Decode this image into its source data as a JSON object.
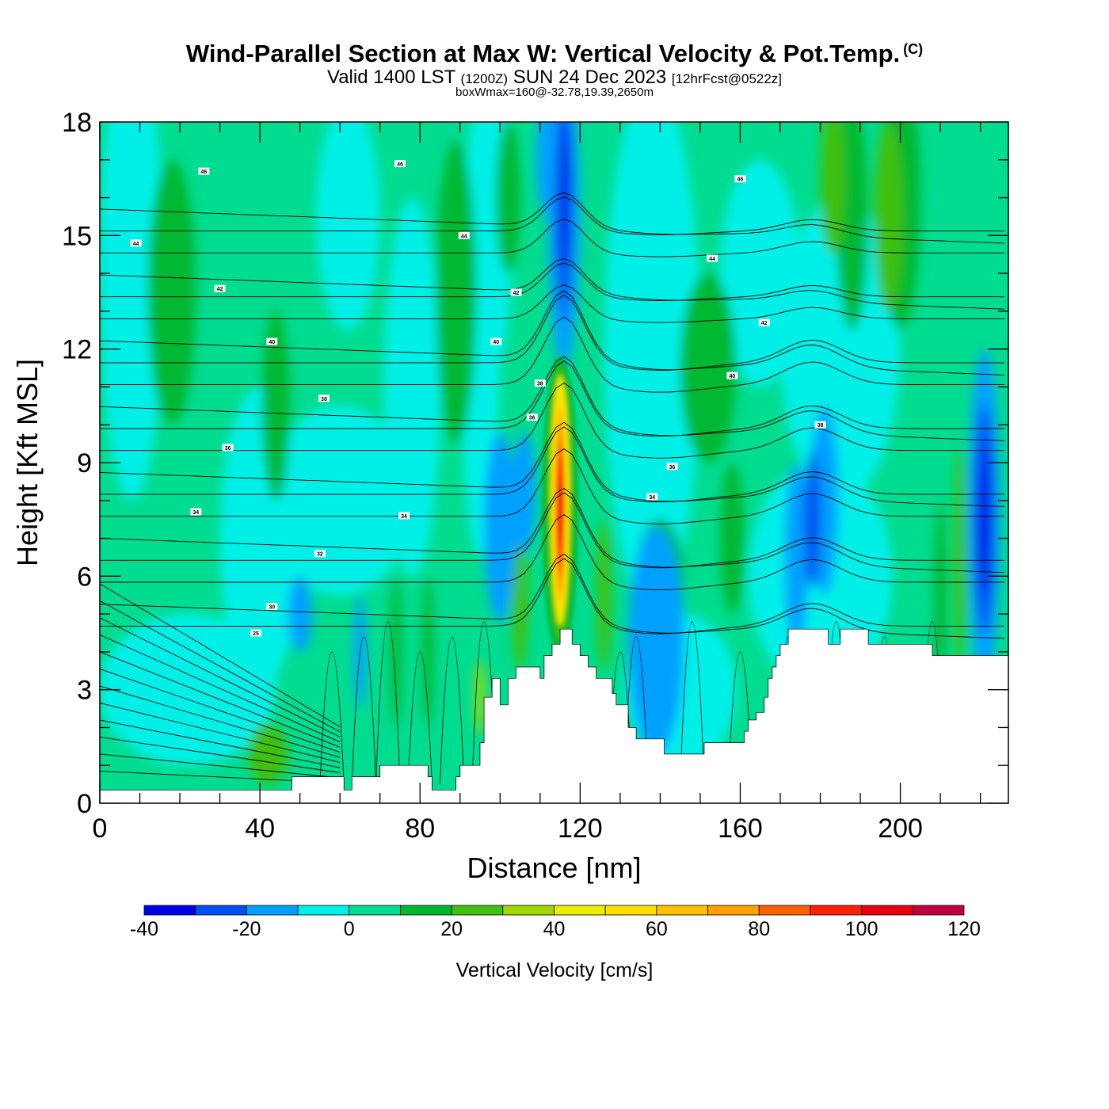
{
  "header": {
    "title": "Wind-Parallel Section at Max W: Vertical Velocity & Pot.Temp.",
    "title_mark": "(C)",
    "valid_prefix": "Valid 1400 LST",
    "valid_utc": "(1200Z)",
    "valid_date": "SUN 24 Dec 2023",
    "forecast": "[12hrFcst@0522z]",
    "box_info": "boxWmax=160@-32.78,19.39,2650m"
  },
  "chart_data": {
    "type": "heatmap",
    "xlabel": "Distance [nm]",
    "ylabel": "Height [Kft MSL]",
    "xlim": [
      0,
      227
    ],
    "ylim": [
      0,
      18
    ],
    "x_ticks": [
      0,
      40,
      80,
      120,
      160,
      200
    ],
    "y_ticks": [
      0,
      3,
      6,
      9,
      12,
      15,
      18
    ],
    "colorbar": {
      "title": "Vertical Velocity [cm/s]",
      "ticks": [
        -40,
        -20,
        0,
        20,
        40,
        60,
        80,
        100,
        120
      ],
      "levels": [
        -40,
        -30,
        -20,
        -10,
        0,
        10,
        20,
        30,
        40,
        50,
        60,
        70,
        80,
        90,
        100,
        110,
        120
      ],
      "colors": [
        "#0000e6",
        "#0050f0",
        "#00a0ff",
        "#00f0e8",
        "#00dc90",
        "#00b830",
        "#40c010",
        "#a0d800",
        "#e8f000",
        "#ffe000",
        "#ffc000",
        "#ffa000",
        "#ff6000",
        "#ff2000",
        "#e80010",
        "#c00040"
      ]
    },
    "terrain": {
      "x": [
        0,
        47,
        48,
        60,
        61,
        63,
        69,
        70,
        76,
        82,
        83,
        89,
        90,
        94,
        95,
        96,
        98,
        99,
        100,
        102,
        104,
        108,
        110,
        111,
        113,
        115,
        116,
        118,
        120,
        122,
        124,
        126,
        128,
        129,
        131,
        132,
        134,
        140,
        141,
        143,
        150,
        151,
        153,
        160,
        161,
        162,
        164,
        166,
        167,
        168,
        169,
        170,
        172,
        173,
        176,
        181,
        182,
        183,
        185,
        191,
        192,
        198,
        207,
        208,
        227
      ],
      "y": [
        0.35,
        0.35,
        0.7,
        0.7,
        0.35,
        0.7,
        0.7,
        1.0,
        1.0,
        0.7,
        0.35,
        0.7,
        1.0,
        1.0,
        1.6,
        2.8,
        3.3,
        3.3,
        2.6,
        3.3,
        3.6,
        3.6,
        3.3,
        3.9,
        4.2,
        4.6,
        4.6,
        4.2,
        3.9,
        3.6,
        3.3,
        3.3,
        2.9,
        2.6,
        2.6,
        2.0,
        1.7,
        1.7,
        1.3,
        1.3,
        1.3,
        1.6,
        1.6,
        1.6,
        1.9,
        2.2,
        2.4,
        2.8,
        3.3,
        3.6,
        3.9,
        4.2,
        4.6,
        4.6,
        4.6,
        4.6,
        4.2,
        4.2,
        4.6,
        4.6,
        4.2,
        4.2,
        4.2,
        3.9,
        3.9
      ]
    },
    "isentropes": {
      "labeled_values": [
        25,
        30,
        32,
        34,
        36,
        38,
        40,
        42,
        44,
        46
      ],
      "label_positions": [
        {
          "value": 46,
          "x": 26,
          "y": 16.7
        },
        {
          "value": 46,
          "x": 75,
          "y": 16.9
        },
        {
          "value": 46,
          "x": 160,
          "y": 16.5
        },
        {
          "value": 44,
          "x": 9,
          "y": 14.8
        },
        {
          "value": 44,
          "x": 91,
          "y": 15.0
        },
        {
          "value": 44,
          "x": 153,
          "y": 14.4
        },
        {
          "value": 42,
          "x": 30,
          "y": 13.6
        },
        {
          "value": 42,
          "x": 104,
          "y": 13.5
        },
        {
          "value": 42,
          "x": 166,
          "y": 12.7
        },
        {
          "value": 40,
          "x": 43,
          "y": 12.2
        },
        {
          "value": 40,
          "x": 99,
          "y": 12.2
        },
        {
          "value": 40,
          "x": 158,
          "y": 11.3
        },
        {
          "value": 38,
          "x": 56,
          "y": 10.7
        },
        {
          "value": 38,
          "x": 110,
          "y": 11.1
        },
        {
          "value": 38,
          "x": 180,
          "y": 10.0
        },
        {
          "value": 36,
          "x": 32,
          "y": 9.4
        },
        {
          "value": 36,
          "x": 108,
          "y": 10.2
        },
        {
          "value": 36,
          "x": 143,
          "y": 8.9
        },
        {
          "value": 34,
          "x": 24,
          "y": 7.7
        },
        {
          "value": 34,
          "x": 76,
          "y": 7.6
        },
        {
          "value": 34,
          "x": 138,
          "y": 8.1
        },
        {
          "value": 32,
          "x": 55,
          "y": 6.6
        },
        {
          "value": 30,
          "x": 43,
          "y": 5.2
        },
        {
          "value": 25,
          "x": 39,
          "y": 4.5
        }
      ]
    },
    "features": {
      "max_updraft": {
        "x": 115,
        "y": 7.8,
        "value": 110
      },
      "downdraft_core_upper": {
        "x": 116,
        "y": 15.5,
        "value": -40
      },
      "downdraft_core_east": {
        "x": 221,
        "y": 7.5,
        "value": -40
      }
    }
  }
}
